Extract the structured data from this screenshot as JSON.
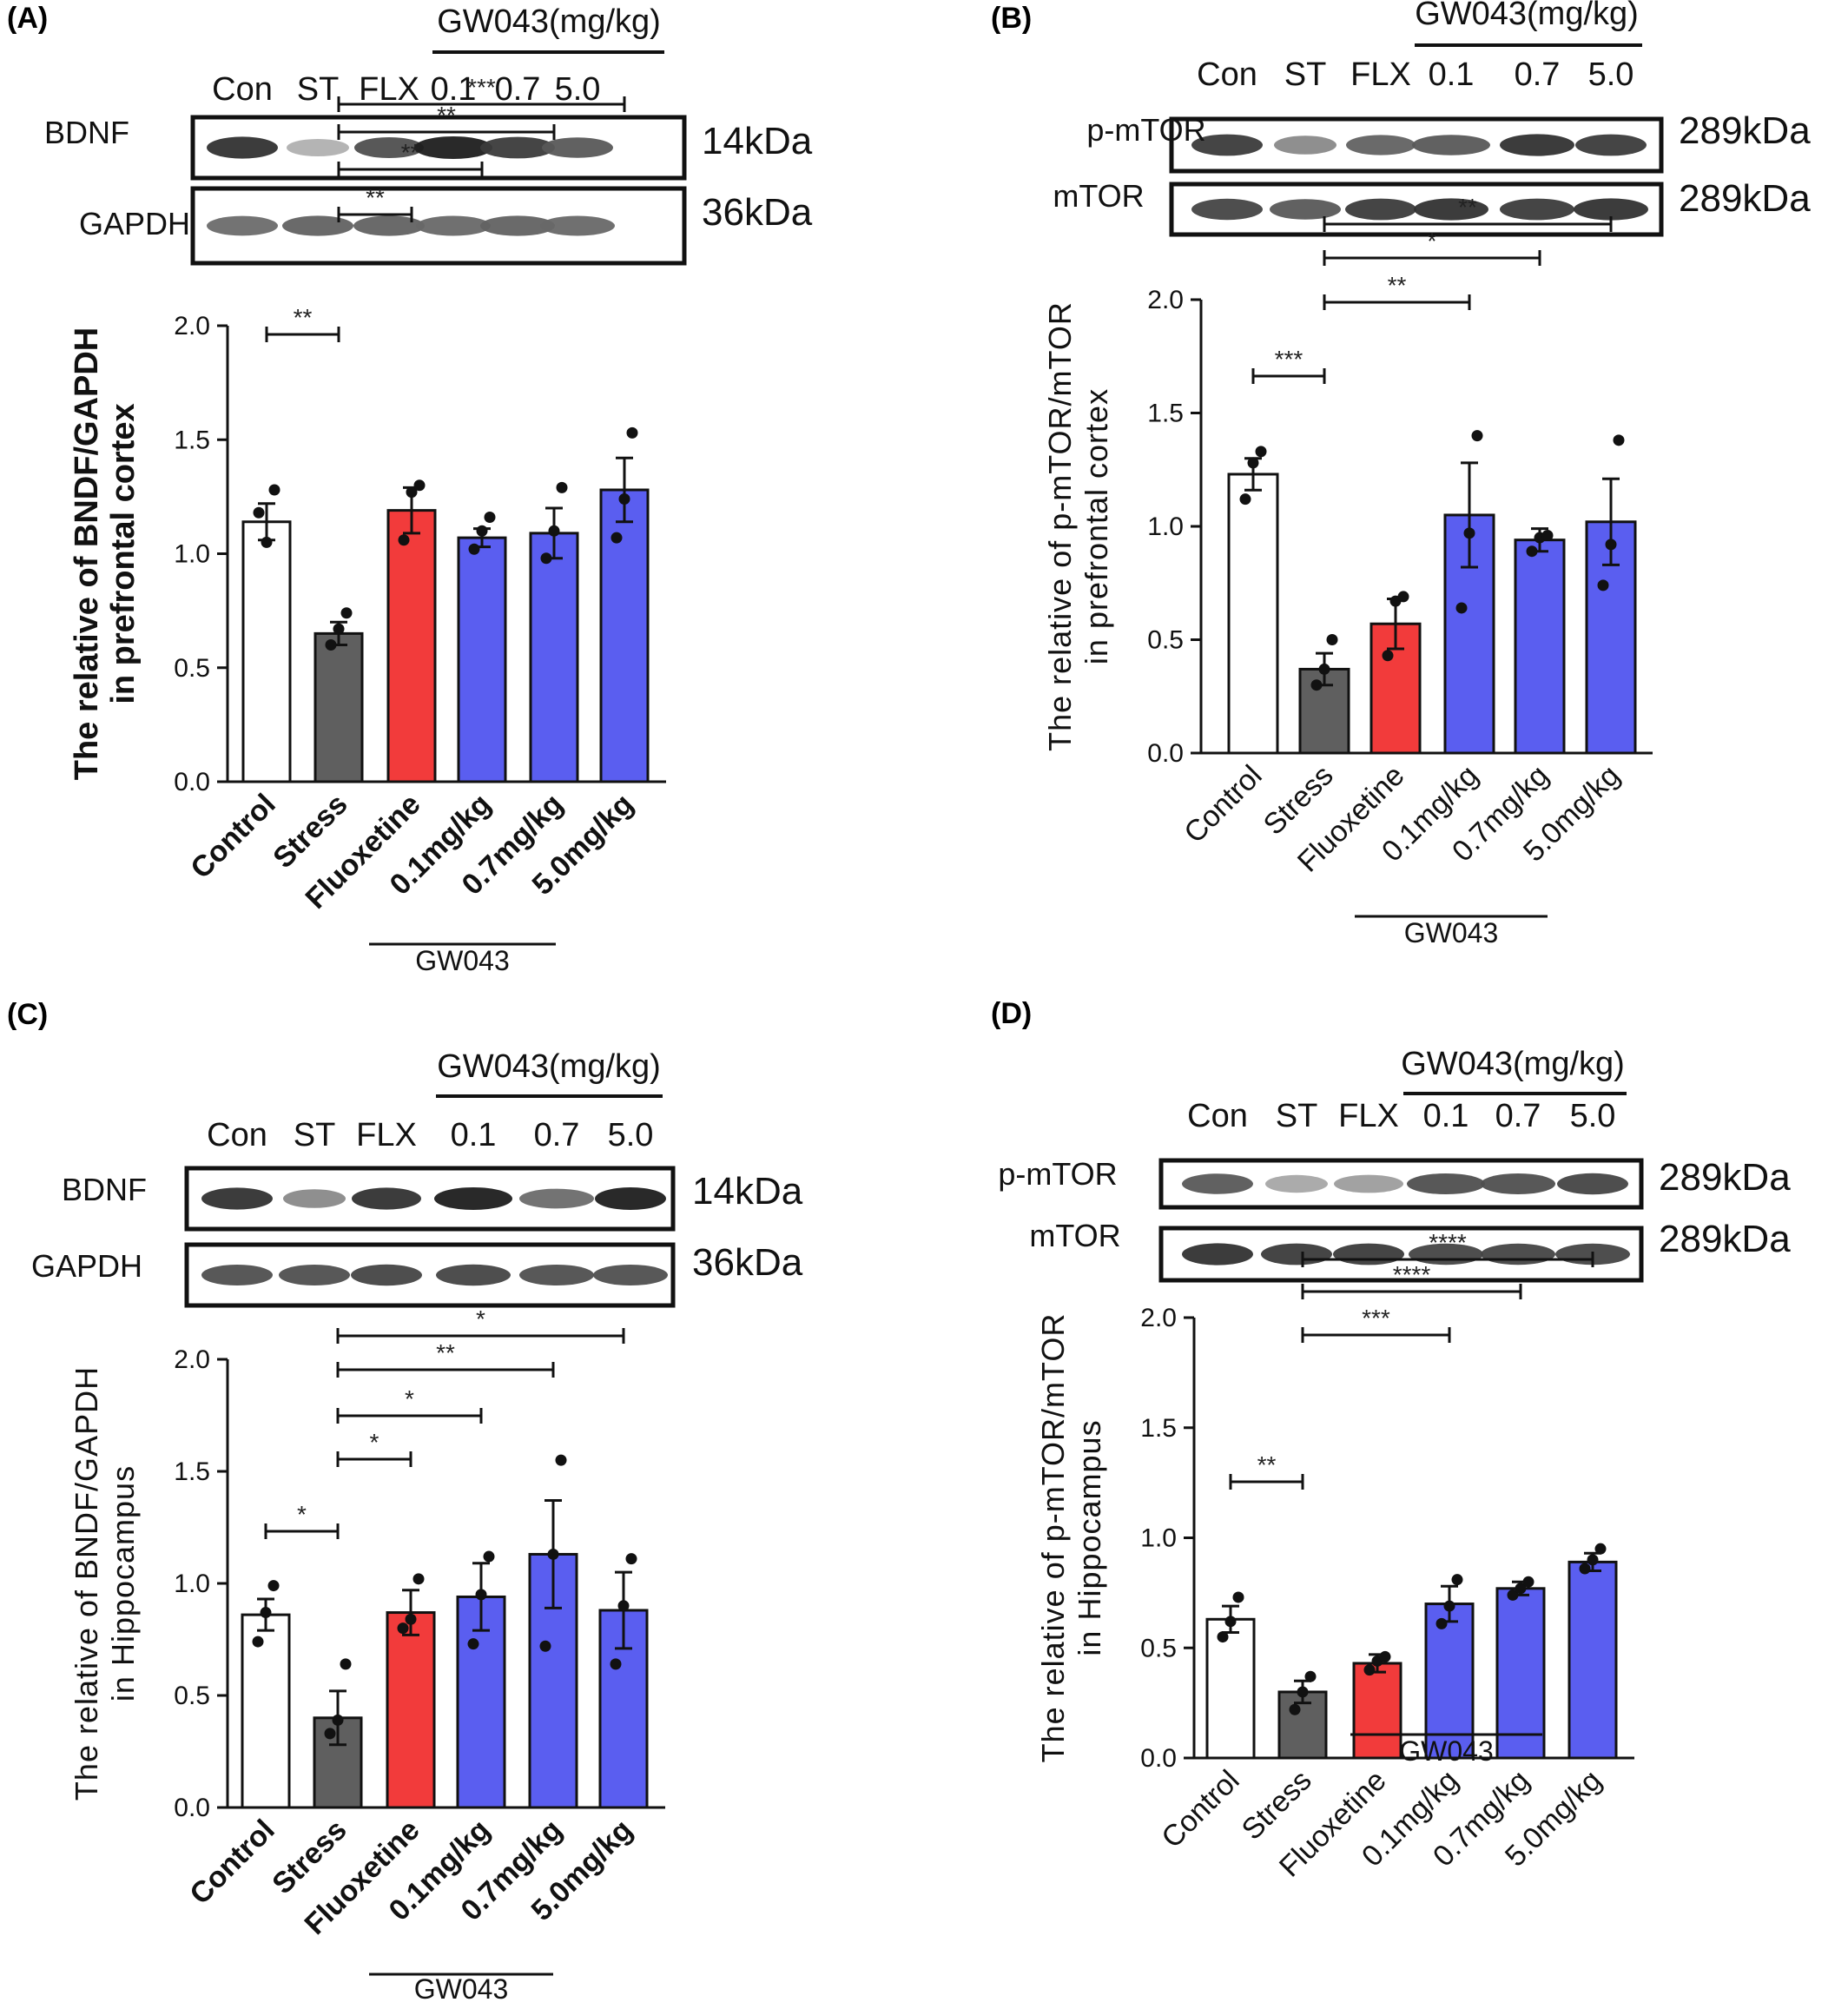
{
  "colors": {
    "control": "#ffffff",
    "stress": "#5f5f5f",
    "fluoxetine": "#f23b3b",
    "gw043": "#5a5ef0",
    "axis": "#111111"
  },
  "chart_data": [
    {
      "panel": "(A)",
      "type": "bar",
      "blot": {
        "group_label": "GW043(mg/kg)",
        "lanes": [
          "Con",
          "ST",
          "FLX",
          "0.1",
          "0.7",
          "5.0"
        ],
        "rows": [
          {
            "protein": "BDNF",
            "kda": "14kDa"
          },
          {
            "protein": "GAPDH",
            "kda": "36kDa"
          }
        ]
      },
      "categories": [
        "Control",
        "Stress",
        "Fluoxetine",
        "0.1mg/kg",
        "0.7mg/kg",
        "5.0mg/kg"
      ],
      "values": [
        1.14,
        0.65,
        1.19,
        1.07,
        1.09,
        1.28
      ],
      "errors": [
        0.08,
        0.05,
        0.1,
        0.04,
        0.11,
        0.14
      ],
      "points": [
        [
          1.18,
          1.05,
          1.28
        ],
        [
          0.6,
          0.67,
          0.74
        ],
        [
          1.06,
          1.27,
          1.3
        ],
        [
          1.02,
          1.1,
          1.16
        ],
        [
          0.98,
          1.1,
          1.29
        ],
        [
          1.07,
          1.24,
          1.53
        ]
      ],
      "ylabel_lines": [
        "The relative of BNDF/GAPDH",
        "in prefrontal cortex"
      ],
      "ylim": [
        0,
        2.0
      ],
      "yticks": [
        "0.0",
        "0.5",
        "1.0",
        "1.5",
        "2.0"
      ],
      "group_bracket_label": "GW043",
      "significance": [
        {
          "from": 0,
          "to": 1,
          "label": "**"
        },
        {
          "from": 1,
          "to": 2,
          "label": "**"
        },
        {
          "from": 1,
          "to": 3,
          "label": "**"
        },
        {
          "from": 1,
          "to": 4,
          "label": "**"
        },
        {
          "from": 1,
          "to": 5,
          "label": "***"
        }
      ]
    },
    {
      "panel": "(B)",
      "type": "bar",
      "blot": {
        "group_label": "GW043(mg/kg)",
        "lanes": [
          "Con",
          "ST",
          "FLX",
          "0.1",
          "0.7",
          "5.0"
        ],
        "rows": [
          {
            "protein": "p-mTOR",
            "kda": "289kDa"
          },
          {
            "protein": "mTOR",
            "kda": "289kDa"
          }
        ]
      },
      "categories": [
        "Control",
        "Stress",
        "Fluoxetine",
        "0.1mg/kg",
        "0.7mg/kg",
        "5.0mg/kg"
      ],
      "values": [
        1.23,
        0.37,
        0.57,
        1.05,
        0.94,
        1.02
      ],
      "errors": [
        0.07,
        0.07,
        0.11,
        0.23,
        0.05,
        0.19
      ],
      "points": [
        [
          1.12,
          1.28,
          1.33
        ],
        [
          0.3,
          0.37,
          0.5
        ],
        [
          0.43,
          0.67,
          0.69
        ],
        [
          0.64,
          0.97,
          1.4
        ],
        [
          0.89,
          0.95,
          0.96
        ],
        [
          0.74,
          0.92,
          1.38
        ]
      ],
      "ylabel_lines": [
        "The relative of p-mTOR/mTOR",
        "in prefrontal cortex"
      ],
      "ylim": [
        0,
        2.0
      ],
      "yticks": [
        "0.0",
        "0.5",
        "1.0",
        "1.5",
        "2.0"
      ],
      "group_bracket_label": "GW043",
      "significance": [
        {
          "from": 0,
          "to": 1,
          "label": "***"
        },
        {
          "from": 1,
          "to": 3,
          "label": "**"
        },
        {
          "from": 1,
          "to": 4,
          "label": "*"
        },
        {
          "from": 1,
          "to": 5,
          "label": "**"
        }
      ]
    },
    {
      "panel": "(C)",
      "type": "bar",
      "blot": {
        "group_label": "GW043(mg/kg)",
        "lanes": [
          "Con",
          "ST",
          "FLX",
          "0.1",
          "0.7",
          "5.0"
        ],
        "rows": [
          {
            "protein": "BDNF",
            "kda": "14kDa"
          },
          {
            "protein": "GAPDH",
            "kda": "36kDa"
          }
        ]
      },
      "categories": [
        "Control",
        "Stress",
        "Fluoxetine",
        "0.1mg/kg",
        "0.7mg/kg",
        "5.0mg/kg"
      ],
      "values": [
        0.86,
        0.4,
        0.87,
        0.94,
        1.13,
        0.88
      ],
      "errors": [
        0.07,
        0.12,
        0.1,
        0.15,
        0.24,
        0.17
      ],
      "points": [
        [
          0.74,
          0.87,
          0.99
        ],
        [
          0.33,
          0.39,
          0.64
        ],
        [
          0.8,
          0.84,
          1.02
        ],
        [
          0.73,
          0.95,
          1.12
        ],
        [
          0.72,
          1.13,
          1.55
        ],
        [
          0.64,
          0.9,
          1.11
        ]
      ],
      "ylabel_lines": [
        "The relative of BNDF/GAPDH",
        "in Hippocampus"
      ],
      "ylim": [
        0,
        2.0
      ],
      "yticks": [
        "0.0",
        "0.5",
        "1.0",
        "1.5",
        "2.0"
      ],
      "group_bracket_label": "GW043",
      "significance": [
        {
          "from": 0,
          "to": 1,
          "label": "*"
        },
        {
          "from": 1,
          "to": 2,
          "label": "*"
        },
        {
          "from": 1,
          "to": 3,
          "label": "*"
        },
        {
          "from": 1,
          "to": 4,
          "label": "**"
        },
        {
          "from": 1,
          "to": 5,
          "label": "*"
        }
      ]
    },
    {
      "panel": "(D)",
      "type": "bar",
      "blot": {
        "group_label": "GW043(mg/kg)",
        "lanes": [
          "Con",
          "ST",
          "FLX",
          "0.1",
          "0.7",
          "5.0"
        ],
        "rows": [
          {
            "protein": "p-mTOR",
            "kda": "289kDa"
          },
          {
            "protein": "mTOR",
            "kda": "289kDa"
          }
        ]
      },
      "categories": [
        "Control",
        "Stress",
        "Fluoxetine",
        "0.1mg/kg",
        "0.7mg/kg",
        "5.0mg/kg"
      ],
      "values": [
        0.63,
        0.3,
        0.43,
        0.7,
        0.77,
        0.89
      ],
      "errors": [
        0.06,
        0.05,
        0.04,
        0.08,
        0.03,
        0.04
      ],
      "points": [
        [
          0.55,
          0.62,
          0.73
        ],
        [
          0.22,
          0.3,
          0.37
        ],
        [
          0.4,
          0.44,
          0.46
        ],
        [
          0.61,
          0.69,
          0.81
        ],
        [
          0.74,
          0.77,
          0.8
        ],
        [
          0.86,
          0.9,
          0.95
        ]
      ],
      "ylabel_lines": [
        "The relative of p-mTOR/mTOR",
        "in Hippocampus"
      ],
      "ylim": [
        0,
        2.0
      ],
      "yticks": [
        "0.0",
        "0.5",
        "1.0",
        "1.5",
        "2.0"
      ],
      "group_bracket_label": "GW043",
      "significance": [
        {
          "from": 0,
          "to": 1,
          "label": "**"
        },
        {
          "from": 1,
          "to": 3,
          "label": "***"
        },
        {
          "from": 1,
          "to": 4,
          "label": "****"
        },
        {
          "from": 1,
          "to": 5,
          "label": "****"
        }
      ]
    }
  ]
}
